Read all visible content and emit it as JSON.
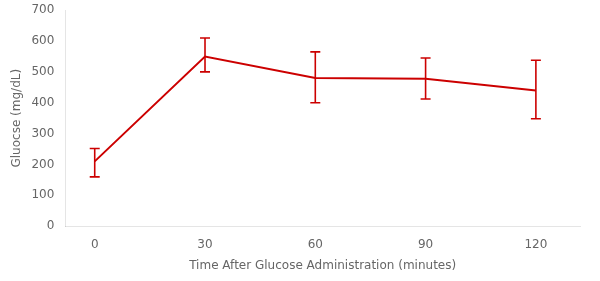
{
  "chart_data": {
    "type": "line",
    "x": [
      0,
      30,
      60,
      90,
      120
    ],
    "values": [
      210,
      550,
      480,
      478,
      440
    ],
    "error_low": [
      50,
      50,
      80,
      66,
      92
    ],
    "error_high": [
      42,
      60,
      85,
      67,
      98
    ],
    "color": "#cc0000",
    "xlabel": "Time After Glucose Administration (minutes)",
    "ylabel": "Gluocse (mg/dL)",
    "xlim": [
      -8,
      132
    ],
    "xticks": [
      0,
      30,
      60,
      90,
      120
    ],
    "ylim": [
      0,
      700
    ],
    "yticks": [
      0,
      100,
      200,
      300,
      400,
      500,
      600,
      700
    ],
    "grid": false
  }
}
